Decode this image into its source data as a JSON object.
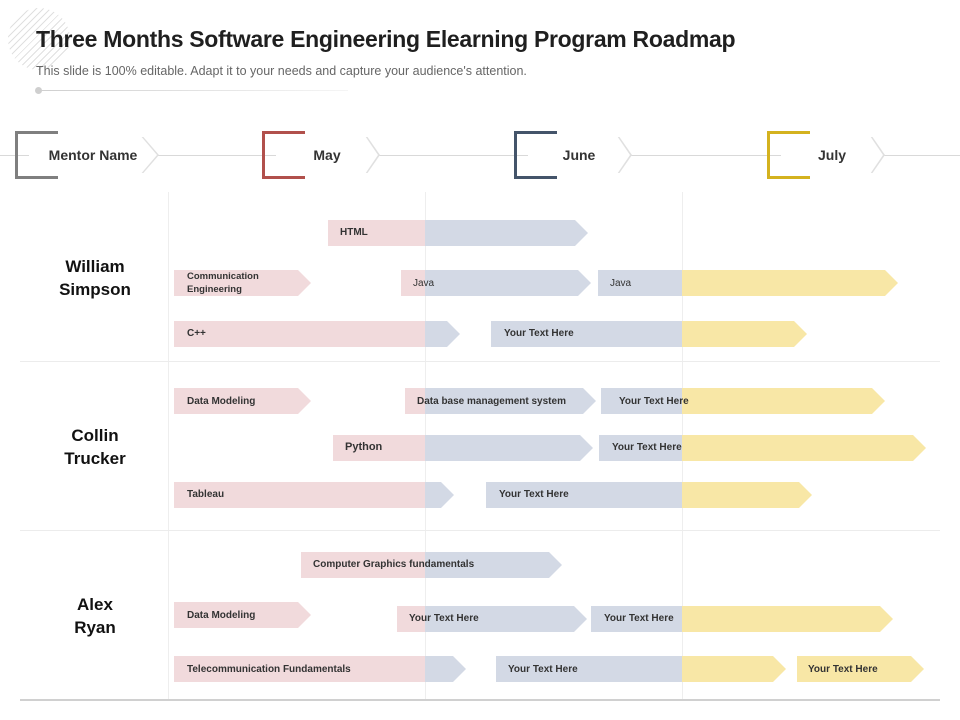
{
  "page": {
    "title": "Three Months Software Engineering Elearning Program Roadmap",
    "subtitle": "This slide is 100% editable. Adapt it to your needs and capture your audience's attention."
  },
  "colors": {
    "may_bar": "#f1dadc",
    "june_bar": "#d3d9e5",
    "july_bar": "#f8e7a6",
    "mentor_bracket": "#7f7f7f",
    "may_bracket": "#b1504c",
    "june_bracket": "#44546a",
    "july_bracket": "#d4b21f"
  },
  "headers": {
    "mentor": "Mentor Name",
    "may": "May",
    "june": "June",
    "july": "July"
  },
  "mentors": {
    "m1": "William\nSimpson",
    "m2": "Collin\nTrucker",
    "m3": "Alex\nRyan"
  },
  "tasks": {
    "r1_html": "HTML",
    "r1_comm": "Communication\nEngineering",
    "r1_java_a": "Java",
    "r1_java_b": "Java",
    "r1_cpp": "C++",
    "r1_text": "Your Text Here",
    "r2_data_modeling": "Data Modeling",
    "r2_dbms": "Data base management system",
    "r2_text_a": "Your Text Here",
    "r2_python": "Python",
    "r2_text_b": "Your Text Here",
    "r2_tableau": "Tableau",
    "r2_text_c": "Your Text Here",
    "r3_cg": "Computer Graphics fundamentals",
    "r3_data_modeling": "Data Modeling",
    "r3_text_a": "Your Text Here",
    "r3_text_b": "Your Text Here",
    "r3_telecom": "Telecommunication Fundamentals",
    "r3_text_c": "Your Text Here",
    "r3_text_d": "Your Text Here"
  }
}
